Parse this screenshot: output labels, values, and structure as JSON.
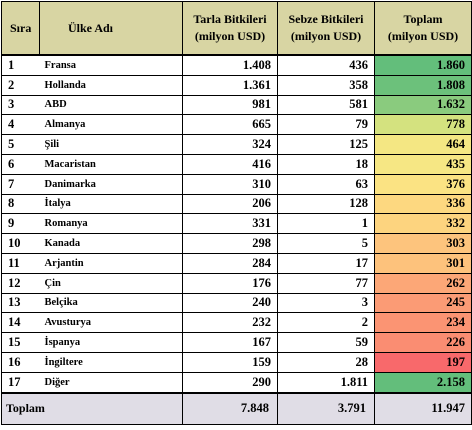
{
  "header": {
    "idx": "Sıra",
    "country": "Ülke Adı",
    "field_line1": "Tarla Bitkileri",
    "field_line2": "(milyon USD)",
    "veg_line1": "Sebze Bitkileri",
    "veg_line2": "(milyon USD)",
    "total_line1": "Toplam",
    "total_line2": "(milyon USD)"
  },
  "header_color": "#d8d5a3",
  "footer_color": "#e0dde6",
  "rows": [
    {
      "idx": "1",
      "country": "Fransa",
      "field": "1.408",
      "veg": "436",
      "total": "1.860",
      "color": "#63be7b"
    },
    {
      "idx": "2",
      "country": "Hollanda",
      "field": "1.361",
      "veg": "358",
      "total": "1.808",
      "color": "#6cc17b"
    },
    {
      "idx": "3",
      "country": "ABD",
      "field": "981",
      "veg": "581",
      "total": "1.632",
      "color": "#8acb7e"
    },
    {
      "idx": "4",
      "country": "Almanya",
      "field": "665",
      "veg": "79",
      "total": "778",
      "color": "#d4e27f"
    },
    {
      "idx": "5",
      "country": "Şili",
      "field": "324",
      "veg": "125",
      "total": "464",
      "color": "#f4e783"
    },
    {
      "idx": "6",
      "country": "Macaristan",
      "field": "416",
      "veg": "18",
      "total": "435",
      "color": "#f6e784"
    },
    {
      "idx": "7",
      "country": "Danimarka",
      "field": "310",
      "veg": "63",
      "total": "376",
      "color": "#fbe383"
    },
    {
      "idx": "8",
      "country": "İtalya",
      "field": "206",
      "veg": "128",
      "total": "336",
      "color": "#fdd880"
    },
    {
      "idx": "9",
      "country": "Romanya",
      "field": "331",
      "veg": "1",
      "total": "332",
      "color": "#fdd47f"
    },
    {
      "idx": "10",
      "country": "Kanada",
      "field": "298",
      "veg": "5",
      "total": "303",
      "color": "#fdc47d"
    },
    {
      "idx": "11",
      "country": "Arjantin",
      "field": "284",
      "veg": "17",
      "total": "301",
      "color": "#fdc27c"
    },
    {
      "idx": "12",
      "country": "Çin",
      "field": "176",
      "veg": "77",
      "total": "262",
      "color": "#fca777"
    },
    {
      "idx": "13",
      "country": "Belçika",
      "field": "240",
      "veg": "3",
      "total": "245",
      "color": "#fb9b75"
    },
    {
      "idx": "14",
      "country": "Avusturya",
      "field": "232",
      "veg": "2",
      "total": "234",
      "color": "#fb9473"
    },
    {
      "idx": "15",
      "country": "İspanya",
      "field": "167",
      "veg": "59",
      "total": "226",
      "color": "#fa8d72"
    },
    {
      "idx": "16",
      "country": "İngiltere",
      "field": "159",
      "veg": "28",
      "total": "197",
      "color": "#f8696b"
    },
    {
      "idx": "17",
      "country": "Diğer",
      "field": "290",
      "veg": "1.811",
      "total": "2.158",
      "color": "#63be7b"
    }
  ],
  "footer": {
    "label": "Toplam",
    "field": "7.848",
    "veg": "3.791",
    "total": "11.947"
  }
}
